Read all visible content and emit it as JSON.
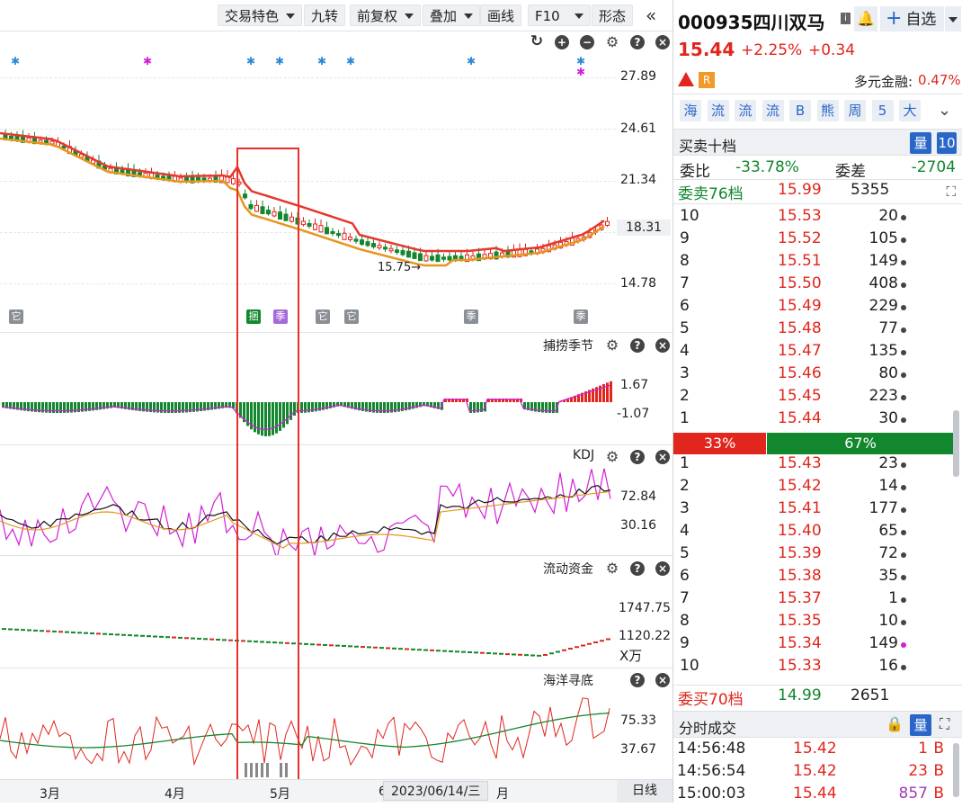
{
  "toolbar": {
    "trade_features": "交易特色",
    "nine_turn": "九转",
    "adjust": "前复权",
    "overlay": "叠加",
    "draw": "画线",
    "f10": "F10",
    "pattern": "形态",
    "collapse": "«"
  },
  "main_chart": {
    "y_ticks": [
      "27.89",
      "24.61",
      "21.34",
      "18.31",
      "14.78"
    ],
    "current_price_label": "18.31",
    "low_annotation": "15.75"
  },
  "panels": {
    "bulao": {
      "name": "捕捞季节",
      "ticks": [
        "1.67",
        "-1.07"
      ]
    },
    "kdj": {
      "name": "KDJ",
      "ticks": [
        "72.84",
        "30.16"
      ]
    },
    "liudong": {
      "name": "流动资金",
      "ticks": [
        "1747.75",
        "1120.22"
      ],
      "unit": "X万"
    },
    "haiyang": {
      "name": "海洋寻底",
      "ticks": [
        "75.33",
        "37.67"
      ]
    }
  },
  "date_axis": {
    "labels": [
      "3月",
      "4月",
      "5月",
      "6",
      "月"
    ],
    "crosshair_date": "2023/06/14/三",
    "period": "日线"
  },
  "stock": {
    "code_name": "000935四川双马",
    "info_icon": "i",
    "watch": "自选",
    "price": "15.44",
    "change_pct": "+2.25%",
    "change": "+0.34",
    "badge_r": "R",
    "multi_finance_label": "多元金融:",
    "multi_finance_value": "0.47%"
  },
  "quick_buttons": [
    "海",
    "流",
    "流",
    "流",
    "B",
    "熊",
    "周",
    "5",
    "大"
  ],
  "orderbook": {
    "title": "买卖十档",
    "qty_btn": "量",
    "ten_btn": "10",
    "weibi_label": "委比",
    "weibi": "-33.78%",
    "weicha_label": "委差",
    "weicha": "-2704",
    "sell_total_label": "委卖76档",
    "sell_total_price": "15.99",
    "sell_total_vol": "5355",
    "asks": [
      {
        "level": "10",
        "price": "15.53",
        "vol": "20"
      },
      {
        "level": "9",
        "price": "15.52",
        "vol": "105"
      },
      {
        "level": "8",
        "price": "15.51",
        "vol": "149"
      },
      {
        "level": "7",
        "price": "15.50",
        "vol": "408"
      },
      {
        "level": "6",
        "price": "15.49",
        "vol": "229"
      },
      {
        "level": "5",
        "price": "15.48",
        "vol": "77"
      },
      {
        "level": "4",
        "price": "15.47",
        "vol": "135"
      },
      {
        "level": "3",
        "price": "15.46",
        "vol": "80"
      },
      {
        "level": "2",
        "price": "15.45",
        "vol": "223"
      },
      {
        "level": "1",
        "price": "15.44",
        "vol": "30"
      }
    ],
    "buy_ratio": "33%",
    "sell_ratio": "67%",
    "buy_ratio_value": 0.33,
    "bids": [
      {
        "level": "1",
        "price": "15.43",
        "vol": "23"
      },
      {
        "level": "2",
        "price": "15.42",
        "vol": "14"
      },
      {
        "level": "3",
        "price": "15.41",
        "vol": "177"
      },
      {
        "level": "4",
        "price": "15.40",
        "vol": "65"
      },
      {
        "level": "5",
        "price": "15.39",
        "vol": "72"
      },
      {
        "level": "6",
        "price": "15.38",
        "vol": "35"
      },
      {
        "level": "7",
        "price": "15.37",
        "vol": "1"
      },
      {
        "level": "8",
        "price": "15.35",
        "vol": "10"
      },
      {
        "level": "9",
        "price": "15.34",
        "vol": "149"
      },
      {
        "level": "10",
        "price": "15.33",
        "vol": "16"
      }
    ],
    "buy_total_label": "委买70档",
    "buy_total_price": "14.99",
    "buy_total_vol": "2651"
  },
  "ticks_section": {
    "title": "分时成交",
    "qty_btn": "量",
    "rows": [
      {
        "time": "14:56:48",
        "price": "15.42",
        "vol": "1",
        "side": "B"
      },
      {
        "time": "14:56:54",
        "price": "15.42",
        "vol": "23",
        "side": "B"
      },
      {
        "time": "15:00:03",
        "price": "15.44",
        "vol": "857",
        "side": "B"
      }
    ]
  },
  "colors": {
    "up": "#e0261d",
    "down": "#12872e",
    "accent": "#2a66c8",
    "magenta": "#d21fd7"
  }
}
